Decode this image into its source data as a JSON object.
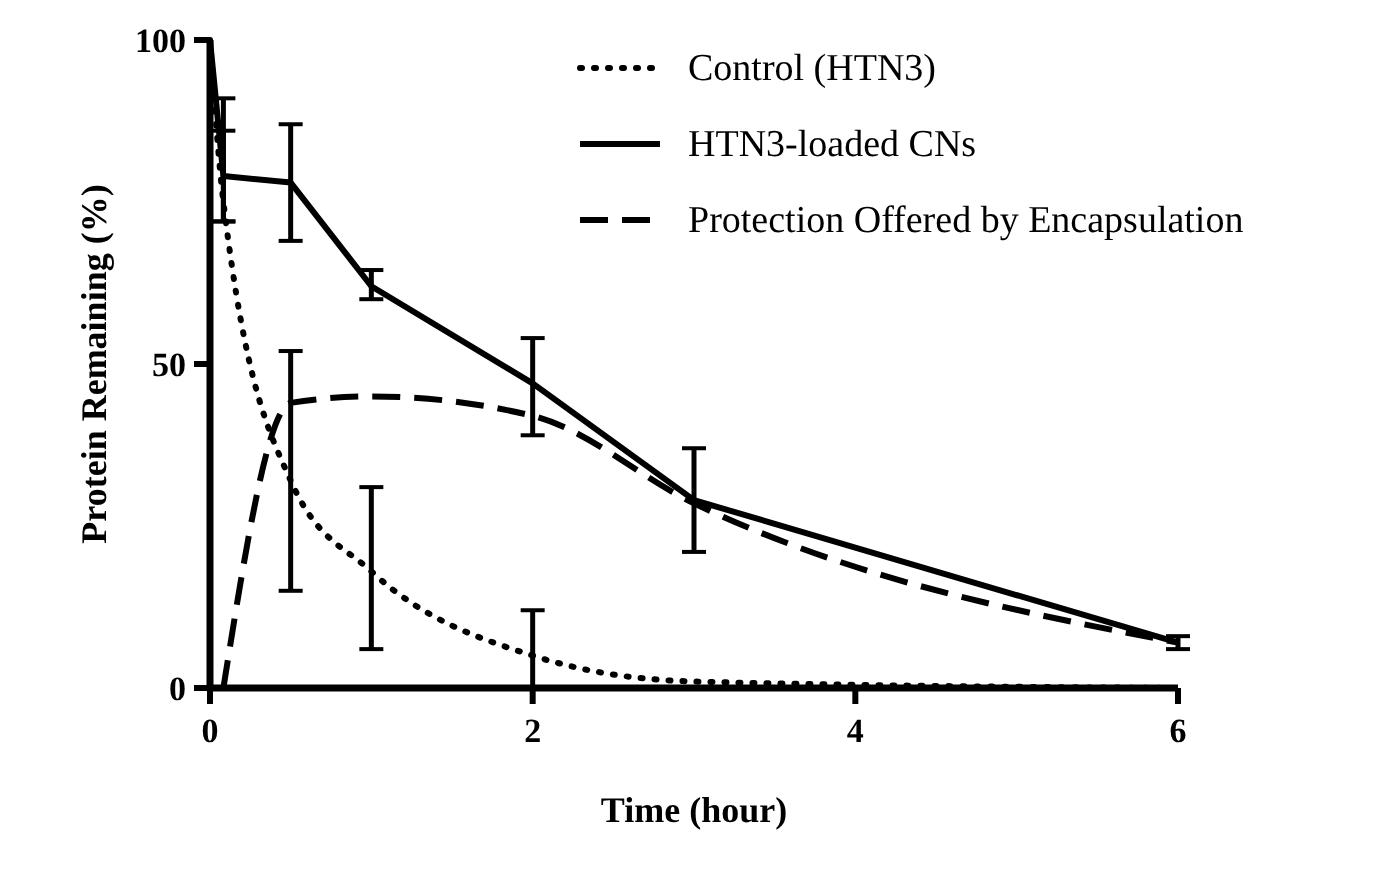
{
  "chart_data": {
    "type": "line",
    "xlabel": "Time (hour)",
    "ylabel": "Protein Remaining (%)",
    "xlim": [
      0,
      6
    ],
    "xticks": [
      0,
      2,
      4,
      6
    ],
    "ylim": [
      0,
      100
    ],
    "yticks": [
      0,
      50,
      100
    ],
    "grid": false,
    "legend": "top right",
    "marker": "none",
    "series": [
      {
        "name": "Control (HTN3)",
        "color": "#000000",
        "line_style": "dotted",
        "x": [
          0,
          0.083,
          0.5,
          1,
          2,
          3,
          6
        ],
        "values": [
          100,
          75,
          32,
          18,
          5,
          1,
          0
        ],
        "errors": [
          null,
          [
            72,
            86
          ],
          [
            15,
            52
          ],
          [
            6,
            31
          ],
          [
            0,
            12
          ],
          null,
          null
        ]
      },
      {
        "name": "HTN3-loaded CNs",
        "color": "#000000",
        "line_style": "solid",
        "x": [
          0,
          0.083,
          0.5,
          1,
          2,
          3,
          6
        ],
        "values": [
          100,
          79,
          78,
          62,
          47,
          29,
          7
        ],
        "errors": [
          null,
          [
            72,
            91
          ],
          [
            69,
            87
          ],
          [
            60,
            64.5
          ],
          [
            39,
            54
          ],
          [
            21,
            37
          ],
          [
            6,
            8
          ]
        ]
      },
      {
        "name": "Protection Offered by Encapsulation",
        "color": "#000000",
        "line_style": "dashed",
        "x": [
          0.083,
          0.5,
          1,
          2,
          3,
          6
        ],
        "values": [
          0,
          44,
          45,
          42,
          28.5,
          7
        ]
      }
    ]
  }
}
